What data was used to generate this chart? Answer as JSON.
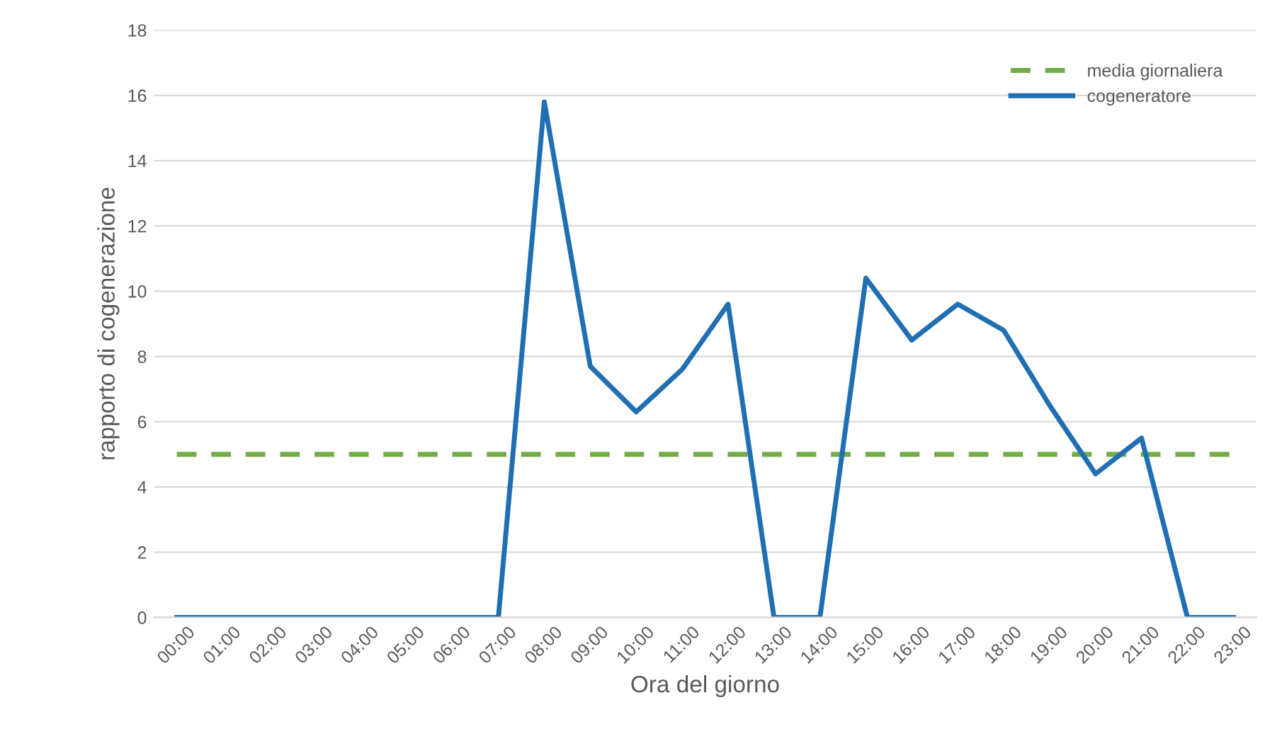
{
  "chart_data": {
    "type": "line",
    "xlabel": "Ora del giorno",
    "ylabel": "rapporto di cogenerazione",
    "categories": [
      "00:00",
      "01:00",
      "02:00",
      "03:00",
      "04:00",
      "05:00",
      "06:00",
      "07:00",
      "08:00",
      "09:00",
      "10:00",
      "11:00",
      "12:00",
      "13:00",
      "14:00",
      "15:00",
      "16:00",
      "17:00",
      "18:00",
      "19:00",
      "20:00",
      "21:00",
      "22:00",
      "23:00"
    ],
    "series": [
      {
        "name": "media giornaliera",
        "color": "#70ad47",
        "line_style": "dashed",
        "values": [
          5,
          5,
          5,
          5,
          5,
          5,
          5,
          5,
          5,
          5,
          5,
          5,
          5,
          5,
          5,
          5,
          5,
          5,
          5,
          5,
          5,
          5,
          5,
          5
        ]
      },
      {
        "name": "cogeneratore",
        "color": "#1f6fb2",
        "line_style": "solid",
        "values": [
          0,
          0,
          0,
          0,
          0,
          0,
          0,
          0,
          15.8,
          7.7,
          6.3,
          7.6,
          9.6,
          0,
          0,
          10.4,
          8.5,
          9.6,
          8.8,
          6.5,
          4.4,
          5.5,
          0,
          0
        ]
      }
    ],
    "ylim": [
      0,
      18
    ],
    "yticks": [
      0,
      2,
      4,
      6,
      8,
      10,
      12,
      14,
      16,
      18
    ],
    "grid": "y",
    "legend": "top right",
    "marker": "none"
  }
}
